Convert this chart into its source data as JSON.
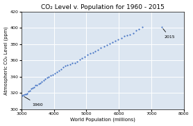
{
  "title": "CO₂ Level v. Population for 1960 - 2015",
  "xlabel": "World Population (millions)",
  "ylabel": "Atmospheric CO₂ Level (ppm)",
  "xlim": [
    3000,
    8000
  ],
  "ylim": [
    300,
    420
  ],
  "xticks": [
    3000,
    4000,
    5000,
    6000,
    7000,
    8000
  ],
  "yticks": [
    300,
    320,
    340,
    360,
    380,
    400,
    420
  ],
  "marker_color": "#4472C4",
  "marker": "o",
  "marker_size": 2.5,
  "annotation_1960_text": "1960",
  "annotation_2015_text": "2015",
  "grid": true,
  "bg_color": "#ffffff",
  "plot_bg_color": "#dce6f1",
  "population_1960": 3034,
  "co2_1960": 316.9,
  "population_2015": 7324,
  "co2_2015": 400.8,
  "population_data": [
    3034,
    3070,
    3105,
    3142,
    3180,
    3219,
    3259,
    3300,
    3343,
    3387,
    3432,
    3479,
    3527,
    3577,
    3628,
    3681,
    3735,
    3790,
    3847,
    3906,
    3966,
    4027,
    4090,
    4154,
    4220,
    4287,
    4355,
    4424,
    4495,
    4567,
    4641,
    4716,
    4793,
    4870,
    4950,
    5031,
    5113,
    5196,
    5280,
    5365,
    5451,
    5538,
    5625,
    5713,
    5803,
    5893,
    5983,
    6074,
    6165,
    6257,
    6349,
    6441,
    6532,
    6625,
    6717,
    7324
  ],
  "co2_data": [
    316.9,
    317.6,
    318.5,
    319.0,
    319.9,
    322.2,
    323.1,
    325.7,
    326.3,
    327.6,
    329.7,
    330.1,
    331.1,
    332.0,
    333.8,
    335.4,
    337.1,
    338.7,
    340.1,
    341.4,
    342.8,
    344.4,
    346.0,
    347.3,
    349.2,
    351.6,
    353.1,
    354.3,
    355.6,
    356.5,
    357.0,
    358.9,
    361.0,
    362.7,
    364.8,
    366.7,
    368.4,
    369.5,
    371.0,
    373.1,
    375.6,
    376.9,
    378.9,
    380.9,
    382.0,
    383.8,
    385.6,
    387.4,
    389.9,
    390.5,
    392.0,
    393.8,
    396.5,
    398.6,
    400.8,
    400.8
  ]
}
